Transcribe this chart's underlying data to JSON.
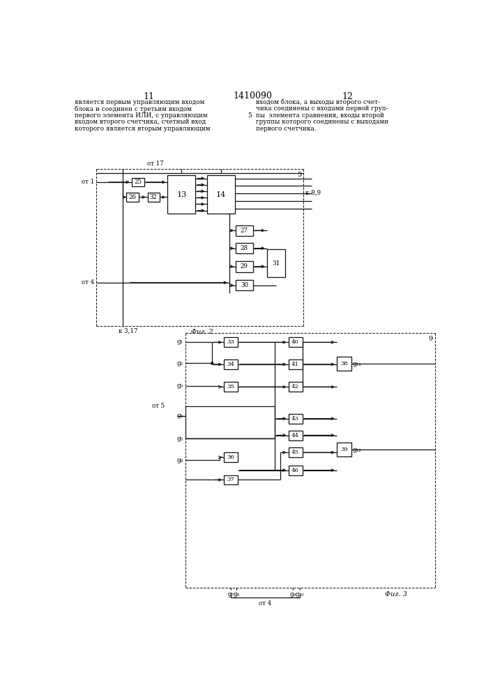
{
  "title": "1410090",
  "page_left": "11",
  "page_right": "12",
  "text_left": "является первым управляющим входом\nблока и соединен с третьим входом\nпервого элемента ИЛИ, с управляющим\nвходом второго счетчика, счетный вход\nкоторого является вторым управляющим",
  "text_right": "входом блока, а выходы второго счет-\nчика соединены с входами первой груп-\nпы  элемента сравнения, входы второй\nгруппы которого соединены с выходами\nпервого счетчика.",
  "num5_marker": "5",
  "bg_color": "#ffffff",
  "line_color": "#111111",
  "text_color": "#000000"
}
